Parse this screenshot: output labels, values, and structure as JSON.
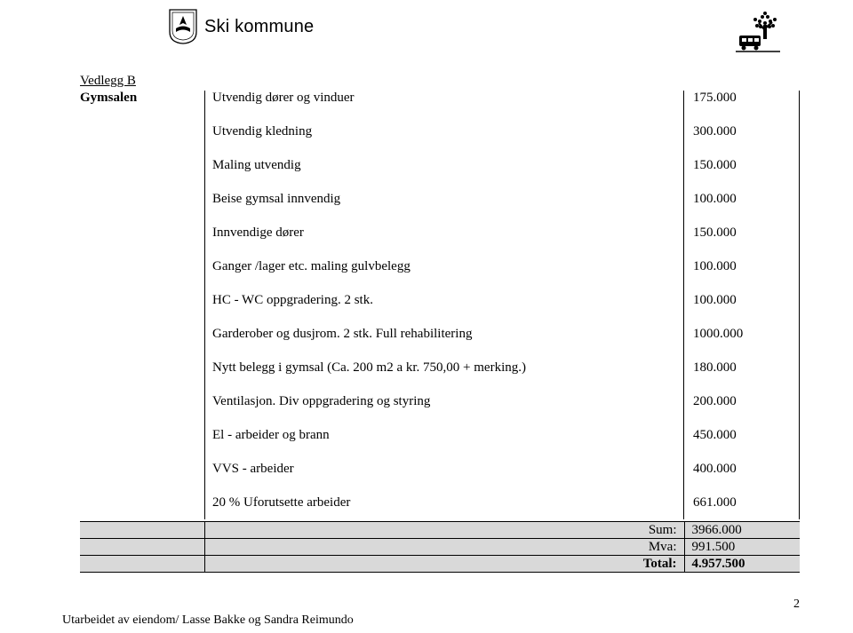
{
  "header": {
    "logo_text": "Ski kommune"
  },
  "doc": {
    "vedlegg": "Vedlegg B",
    "section": "Gymsalen",
    "footer": "Utarbeidet av eiendom/ Lasse Bakke og Sandra Reimundo",
    "page_number": "2"
  },
  "items": [
    {
      "label": "Utvendig dører og vinduer",
      "value": "175.000"
    },
    {
      "label": "Utvendig kledning",
      "value": "300.000"
    },
    {
      "label": "Maling utvendig",
      "value": "150.000"
    },
    {
      "label": "Beise gymsal innvendig",
      "value": "100.000"
    },
    {
      "label": "Innvendige dører",
      "value": "150.000"
    },
    {
      "label": "Ganger /lager etc. maling gulvbelegg",
      "value": "100.000"
    },
    {
      "label": "HC - WC oppgradering. 2 stk.",
      "value": "100.000"
    },
    {
      "label": "Garderober og dusjrom. 2 stk. Full rehabilitering",
      "value": "1000.000"
    },
    {
      "label": "Nytt belegg i gymsal (Ca. 200 m2 a kr. 750,00 + merking.)",
      "value": "180.000"
    },
    {
      "label": "Ventilasjon. Div oppgradering og styring",
      "value": "200.000"
    },
    {
      "label": "El - arbeider og brann",
      "value": "450.000"
    },
    {
      "label": "VVS - arbeider",
      "value": "400.000"
    },
    {
      "label": "20 % Uforutsette arbeider",
      "value": "661.000"
    }
  ],
  "summary": {
    "rows": [
      {
        "label": "Sum:",
        "value": "3966.000",
        "bold": false
      },
      {
        "label": "Mva:",
        "value": "991.500",
        "bold": false
      },
      {
        "label": "Total:",
        "value": "4.957.500",
        "bold": true
      }
    ]
  },
  "colors": {
    "page_bg": "#ffffff",
    "text": "#000000",
    "summary_bg": "#d9d9d9",
    "border": "#000000"
  }
}
